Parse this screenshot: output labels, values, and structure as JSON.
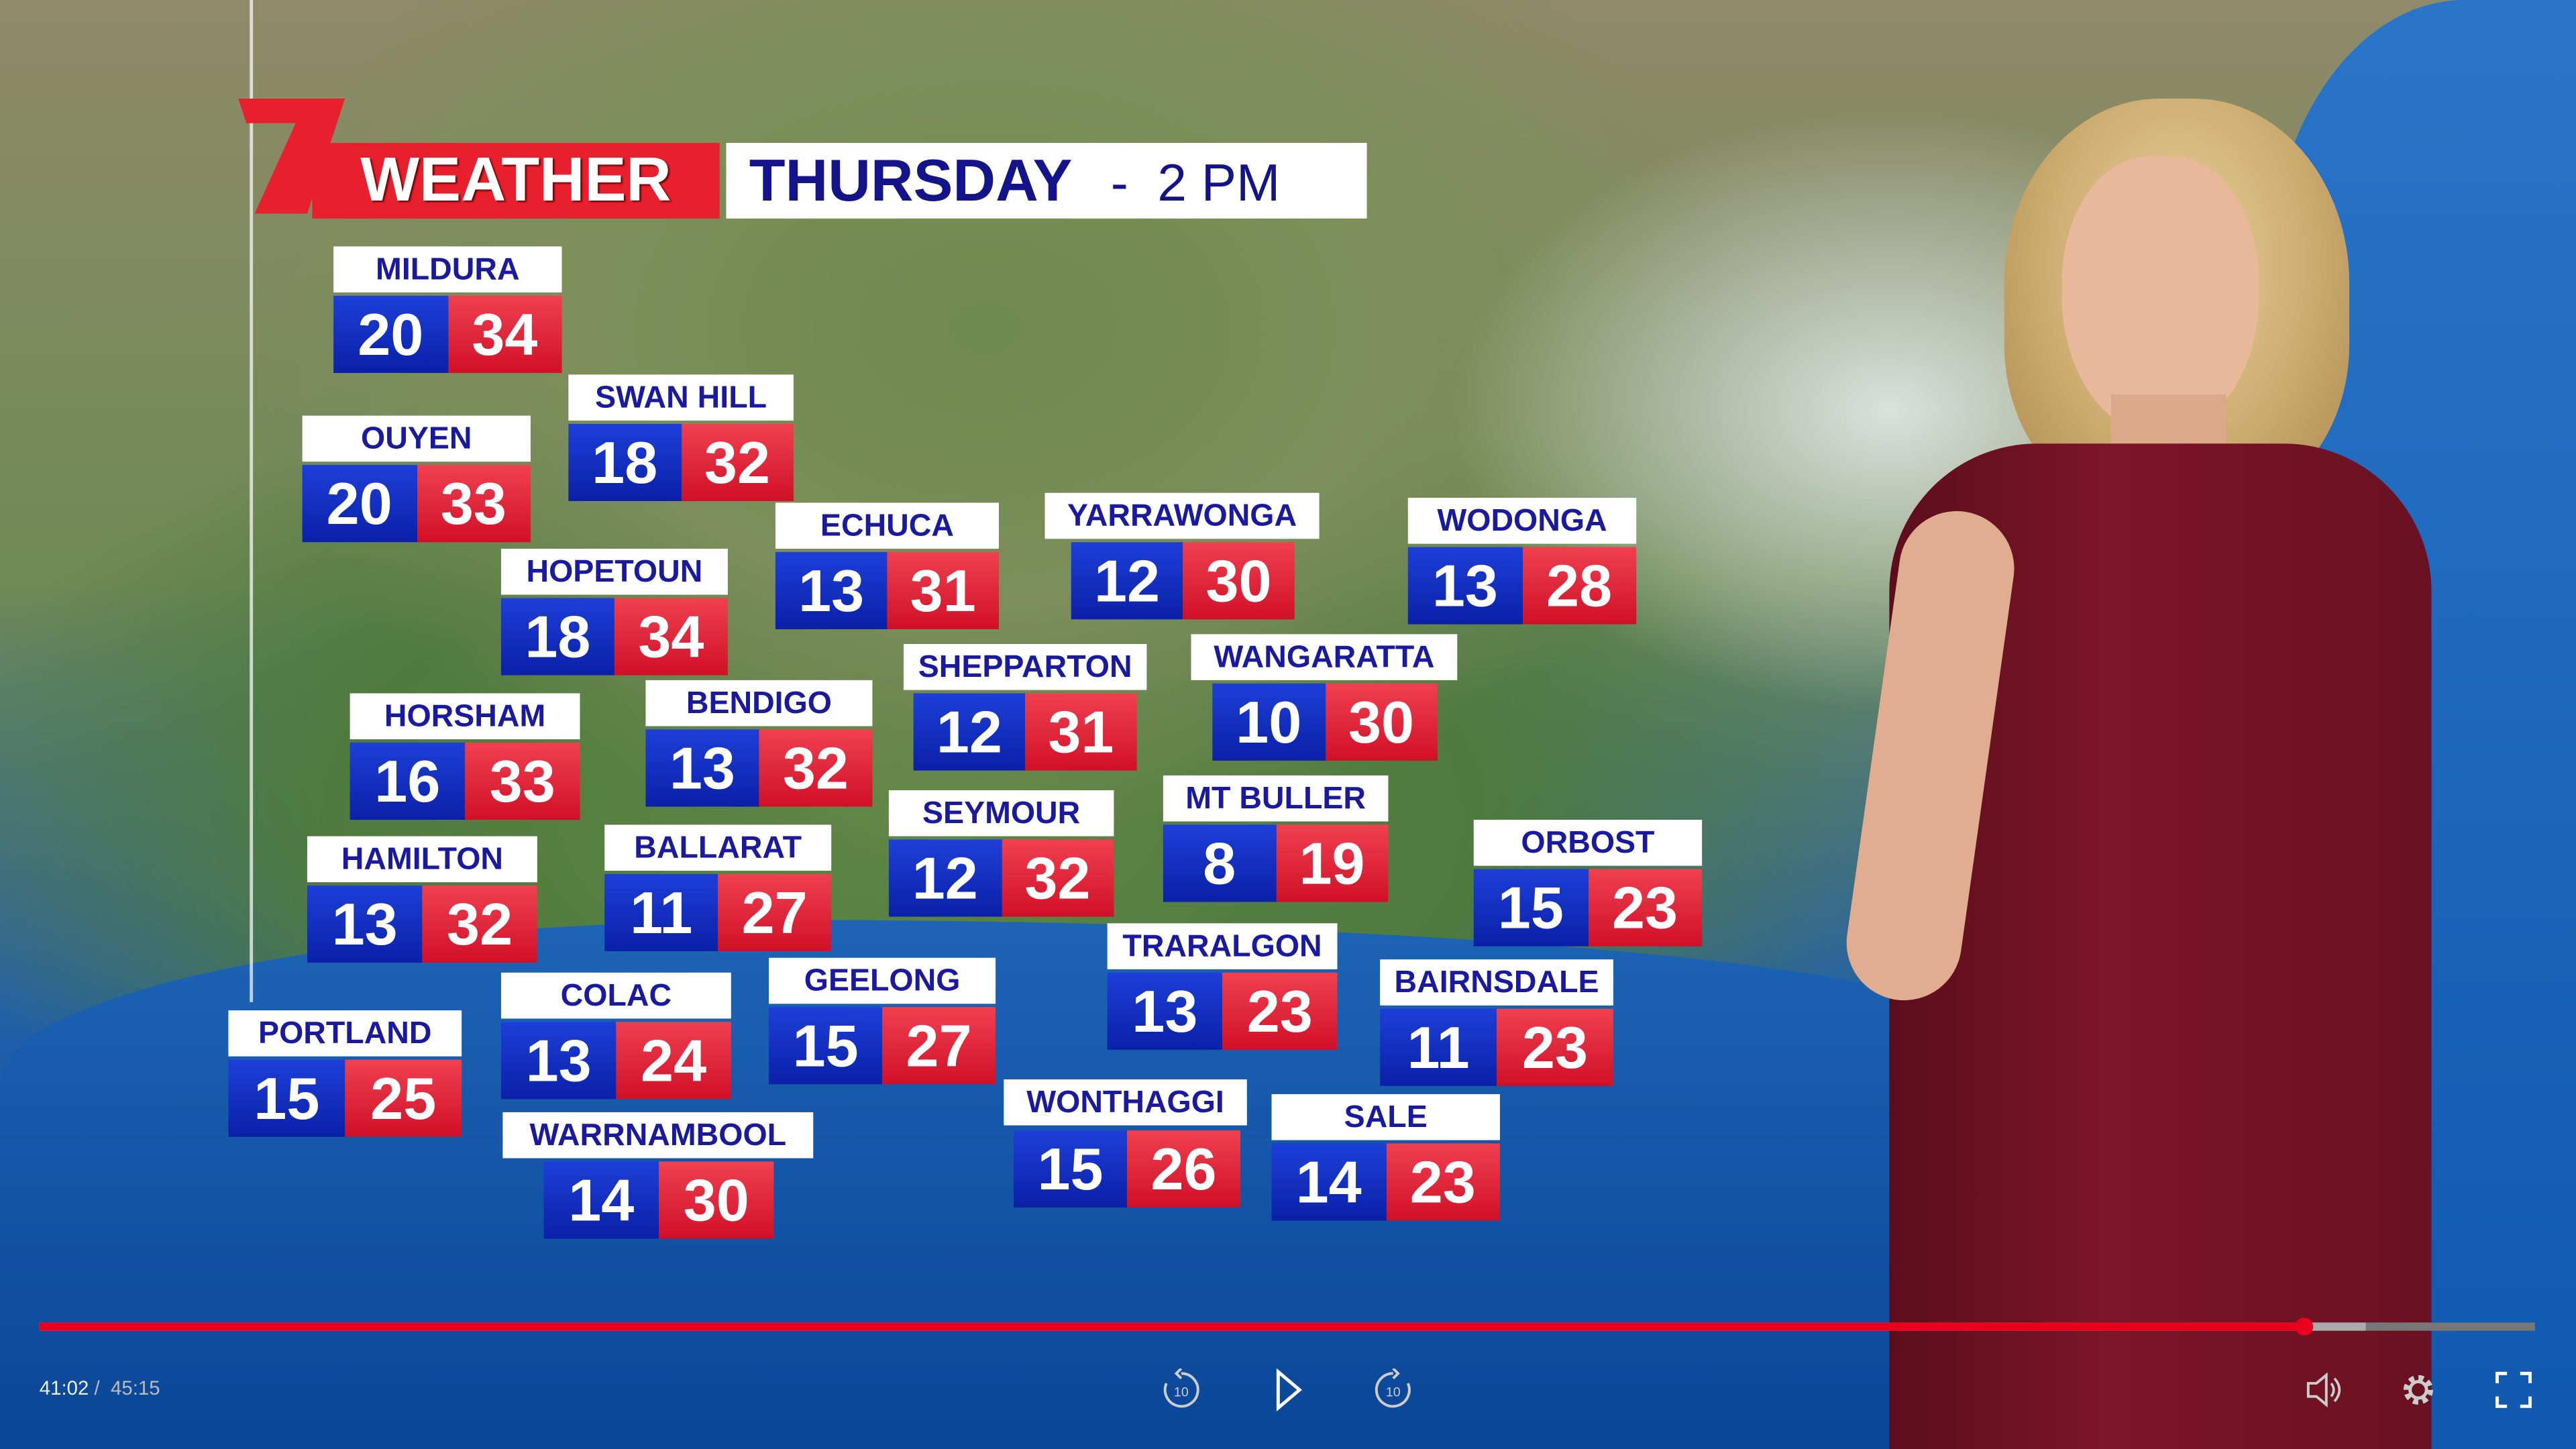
{
  "header": {
    "brand_logo": "7",
    "weather_label": "WEATHER",
    "day": "THURSDAY",
    "separator": "-",
    "time": "2 PM"
  },
  "colors": {
    "min_box": "#1d3fd8",
    "max_box": "#e8202e",
    "label_text": "#1a1aa0",
    "progress": "#e8001c"
  },
  "cities": [
    {
      "name": "MILDURA",
      "min": "20",
      "max": "34"
    },
    {
      "name": "SWAN HILL",
      "min": "18",
      "max": "32"
    },
    {
      "name": "OUYEN",
      "min": "20",
      "max": "33"
    },
    {
      "name": "ECHUCA",
      "min": "13",
      "max": "31"
    },
    {
      "name": "YARRAWONGA",
      "min": "12",
      "max": "30"
    },
    {
      "name": "WODONGA",
      "min": "13",
      "max": "28"
    },
    {
      "name": "HOPETOUN",
      "min": "18",
      "max": "34"
    },
    {
      "name": "SHEPPARTON",
      "min": "12",
      "max": "31"
    },
    {
      "name": "WANGARATTA",
      "min": "10",
      "max": "30"
    },
    {
      "name": "HORSHAM",
      "min": "16",
      "max": "33"
    },
    {
      "name": "BENDIGO",
      "min": "13",
      "max": "32"
    },
    {
      "name": "SEYMOUR",
      "min": "12",
      "max": "32"
    },
    {
      "name": "MT BULLER",
      "min": "8",
      "max": "19"
    },
    {
      "name": "HAMILTON",
      "min": "13",
      "max": "32"
    },
    {
      "name": "BALLARAT",
      "min": "11",
      "max": "27"
    },
    {
      "name": "ORBOST",
      "min": "15",
      "max": "23"
    },
    {
      "name": "TRARALGON",
      "min": "13",
      "max": "23"
    },
    {
      "name": "BAIRNSDALE",
      "min": "11",
      "max": "23"
    },
    {
      "name": "GEELONG",
      "min": "15",
      "max": "27"
    },
    {
      "name": "COLAC",
      "min": "13",
      "max": "24"
    },
    {
      "name": "PORTLAND",
      "min": "15",
      "max": "25"
    },
    {
      "name": "WONTHAGGI",
      "min": "15",
      "max": "26"
    },
    {
      "name": "SALE",
      "min": "14",
      "max": "23"
    },
    {
      "name": "WARRNAMBOOL",
      "min": "14",
      "max": "30"
    }
  ],
  "player": {
    "current_time": "41:02",
    "separator": "/",
    "duration": "45:15",
    "progress_percent": 90.7,
    "buffered_percent": 93.2,
    "icons": [
      "rewind-10-icon",
      "play-icon",
      "forward-10-icon",
      "volume-icon",
      "settings-gear-icon",
      "fullscreen-icon"
    ],
    "skip_seconds": "10"
  }
}
